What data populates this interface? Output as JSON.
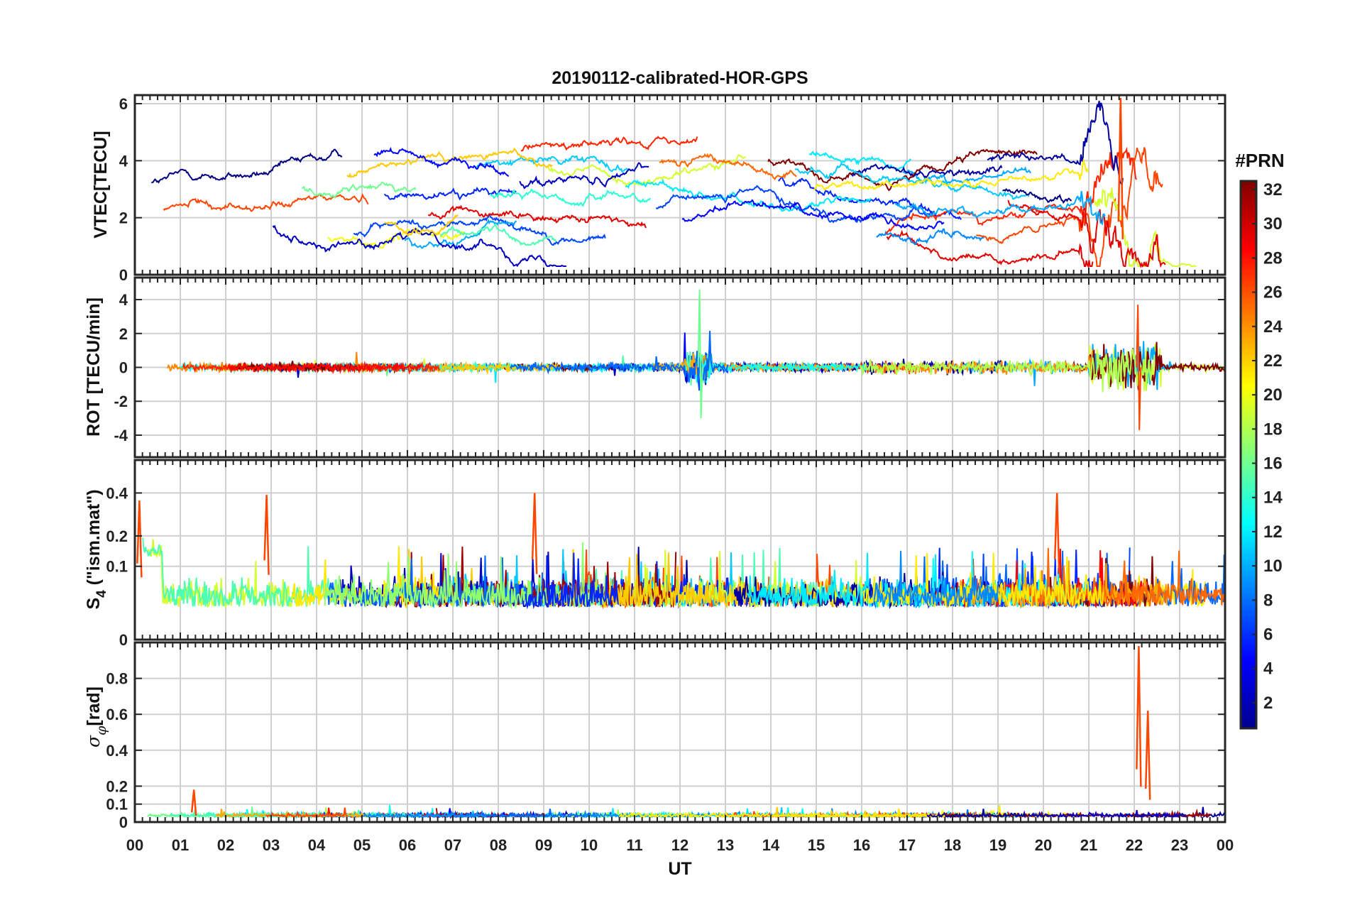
{
  "chart_data": {
    "type": "line",
    "title": "20190112-calibrated-HOR-GPS",
    "xlabel": "UT",
    "x_ticks": [
      "00",
      "01",
      "02",
      "03",
      "04",
      "05",
      "06",
      "07",
      "08",
      "09",
      "10",
      "11",
      "12",
      "13",
      "14",
      "15",
      "16",
      "17",
      "18",
      "19",
      "20",
      "21",
      "22",
      "23",
      "00"
    ],
    "xlim": [
      0,
      24
    ],
    "grid": true,
    "colorbar": {
      "title": "#PRN",
      "colormap": "jet",
      "range": [
        1,
        32
      ],
      "ticks": [
        "2",
        "4",
        "6",
        "8",
        "10",
        "12",
        "14",
        "16",
        "18",
        "20",
        "22",
        "24",
        "26",
        "28",
        "30",
        "32"
      ]
    },
    "panels": [
      {
        "id": "vtec",
        "ylabel": "VTEC[TECU]",
        "ylim": [
          0,
          6.3
        ],
        "y_ticks": [
          "0",
          "2",
          "4",
          "6"
        ],
        "y_tick_values": [
          0,
          2,
          4,
          6
        ],
        "typical_range": [
          0.3,
          6.0
        ],
        "peak": {
          "x": 21.7,
          "y": 6.2
        }
      },
      {
        "id": "rot",
        "ylabel": "ROT [TECU/min]",
        "ylim": [
          -5.3,
          5.3
        ],
        "y_ticks": [
          "-4",
          "-2",
          "0",
          "2",
          "4"
        ],
        "y_tick_values": [
          -4,
          -2,
          0,
          2,
          4
        ],
        "typical_range": [
          -1,
          1
        ],
        "active_periods": [
          [
            12.2,
            12.6
          ],
          [
            21.0,
            22.6
          ]
        ],
        "max": 4.6,
        "min": -3.7
      },
      {
        "id": "s4",
        "ylabel_parts": [
          "S",
          "4",
          " (\"ism.mat\")"
        ],
        "ylim": [
          0,
          0.6
        ],
        "scale": "sqrt",
        "y_ticks": [
          "0",
          "0.1",
          "0.2",
          "0.4"
        ],
        "y_tick_values": [
          0,
          0.1,
          0.2,
          0.4
        ],
        "typical_range": [
          0,
          0.2
        ],
        "peaks": [
          {
            "x": 0.1,
            "y": 0.36
          },
          {
            "x": 2.9,
            "y": 0.39
          },
          {
            "x": 8.8,
            "y": 0.4
          },
          {
            "x": 20.3,
            "y": 0.4
          }
        ]
      },
      {
        "id": "sigma",
        "ylabel_parts": [
          "σ",
          "φ",
          "[rad]"
        ],
        "ylim": [
          0,
          1.0
        ],
        "y_ticks": [
          "0",
          "0.1",
          "0.2",
          "0.4",
          "0.6",
          "0.8"
        ],
        "y_tick_values": [
          0,
          0.1,
          0.2,
          0.4,
          0.6,
          0.8
        ],
        "typical_range": [
          0.02,
          0.08
        ],
        "peaks": [
          {
            "x": 22.1,
            "y": 0.98
          },
          {
            "x": 22.3,
            "y": 0.62
          },
          {
            "x": 1.3,
            "y": 0.18
          }
        ]
      }
    ]
  }
}
